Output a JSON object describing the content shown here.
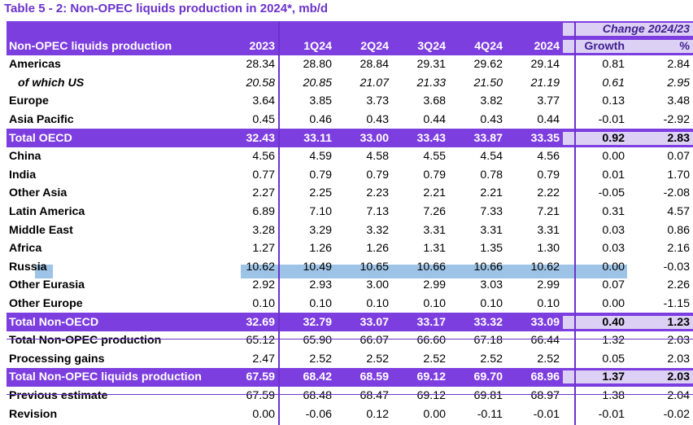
{
  "title": "Table 5 - 2: Non-OPEC liquids production in 2024*, mb/d",
  "header": {
    "change_label": "Change 2024/23",
    "columns": [
      "Non-OPEC liquids production",
      "2023",
      "1Q24",
      "2Q24",
      "3Q24",
      "4Q24",
      "2024",
      "Growth",
      "%"
    ]
  },
  "rows": [
    {
      "label": "Americas",
      "values": [
        "28.34",
        "28.80",
        "28.84",
        "29.31",
        "29.62",
        "29.14",
        "0.81",
        "2.84"
      ]
    },
    {
      "label": "of which US",
      "values": [
        "20.58",
        "20.85",
        "21.07",
        "21.33",
        "21.50",
        "21.19",
        "0.61",
        "2.95"
      ]
    },
    {
      "label": "Europe",
      "values": [
        "3.64",
        "3.85",
        "3.73",
        "3.68",
        "3.82",
        "3.77",
        "0.13",
        "3.48"
      ]
    },
    {
      "label": "Asia Pacific",
      "values": [
        "0.45",
        "0.46",
        "0.43",
        "0.44",
        "0.43",
        "0.44",
        "-0.01",
        "-2.92"
      ]
    },
    {
      "label": "Total OECD",
      "values": [
        "32.43",
        "33.11",
        "33.00",
        "33.43",
        "33.87",
        "33.35",
        "0.92",
        "2.83"
      ]
    },
    {
      "label": "China",
      "values": [
        "4.56",
        "4.59",
        "4.58",
        "4.55",
        "4.54",
        "4.56",
        "0.00",
        "0.07"
      ]
    },
    {
      "label": "India",
      "values": [
        "0.77",
        "0.79",
        "0.79",
        "0.79",
        "0.78",
        "0.79",
        "0.01",
        "1.70"
      ]
    },
    {
      "label": "Other Asia",
      "values": [
        "2.27",
        "2.25",
        "2.23",
        "2.21",
        "2.21",
        "2.22",
        "-0.05",
        "-2.08"
      ]
    },
    {
      "label": "Latin America",
      "values": [
        "6.89",
        "7.10",
        "7.13",
        "7.26",
        "7.33",
        "7.21",
        "0.31",
        "4.57"
      ]
    },
    {
      "label": "Middle East",
      "values": [
        "3.28",
        "3.29",
        "3.32",
        "3.31",
        "3.31",
        "3.31",
        "0.03",
        "0.86"
      ]
    },
    {
      "label": "Africa",
      "values": [
        "1.27",
        "1.26",
        "1.26",
        "1.31",
        "1.35",
        "1.30",
        "0.03",
        "2.16"
      ]
    },
    {
      "label": "Russia",
      "values": [
        "10.62",
        "10.49",
        "10.65",
        "10.66",
        "10.66",
        "10.62",
        "0.00",
        "-0.03"
      ]
    },
    {
      "label": "Other Eurasia",
      "values": [
        "2.92",
        "2.93",
        "3.00",
        "2.99",
        "3.03",
        "2.99",
        "0.07",
        "2.26"
      ]
    },
    {
      "label": "Other Europe",
      "values": [
        "0.10",
        "0.10",
        "0.10",
        "0.10",
        "0.10",
        "0.10",
        "0.00",
        "-1.15"
      ]
    },
    {
      "label": "Total Non-OECD",
      "values": [
        "32.69",
        "32.79",
        "33.07",
        "33.17",
        "33.32",
        "33.09",
        "0.40",
        "1.23"
      ]
    },
    {
      "label": "Total Non-OPEC production",
      "values": [
        "65.12",
        "65.90",
        "66.07",
        "66.60",
        "67.18",
        "66.44",
        "1.32",
        "2.03"
      ]
    },
    {
      "label": "Processing gains",
      "values": [
        "2.47",
        "2.52",
        "2.52",
        "2.52",
        "2.52",
        "2.52",
        "0.05",
        "2.03"
      ]
    },
    {
      "label": "Total Non-OPEC liquids production",
      "values": [
        "67.59",
        "68.42",
        "68.59",
        "69.12",
        "69.70",
        "68.96",
        "1.37",
        "2.03"
      ]
    },
    {
      "label": "Previous estimate",
      "values": [
        "67.59",
        "68.48",
        "68.47",
        "69.12",
        "69.81",
        "68.97",
        "1.38",
        "2.04"
      ]
    },
    {
      "label": "Revision",
      "values": [
        "0.00",
        "-0.06",
        "0.12",
        "0.00",
        "-0.11",
        "-0.01",
        "-0.01",
        "-0.02"
      ]
    }
  ],
  "colors": {
    "accent": "#7d3ee0",
    "light_accent": "#ddd0f5",
    "highlight": "#9dc3e6",
    "title": "#6b33cc"
  }
}
